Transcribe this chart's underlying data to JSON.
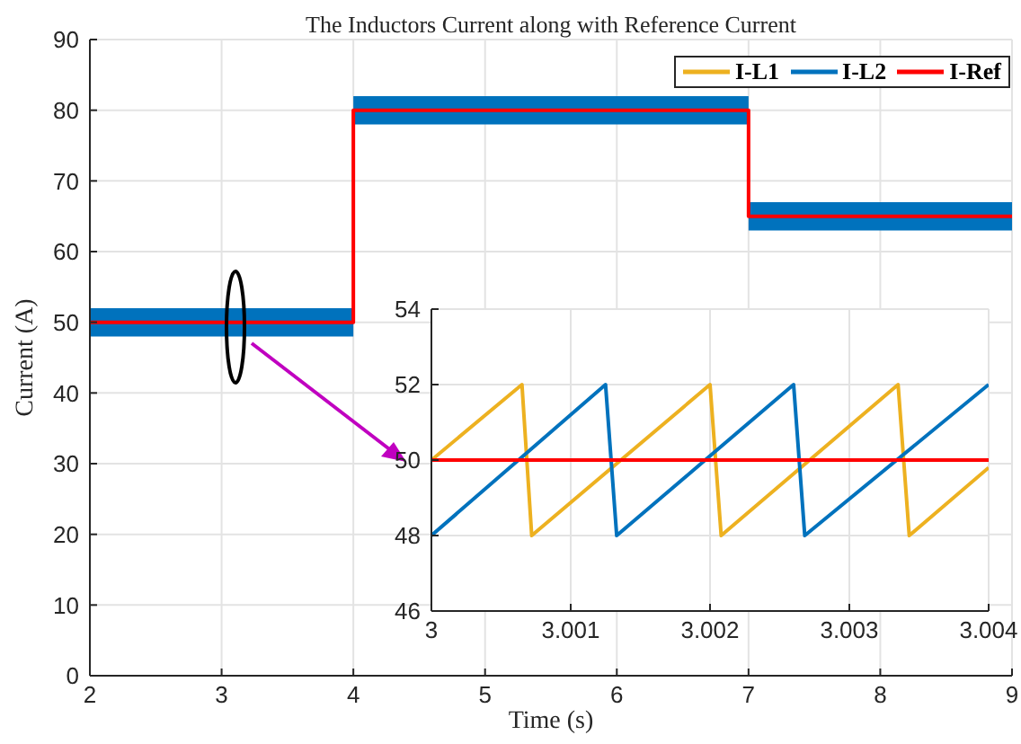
{
  "chart_data": [
    {
      "type": "line",
      "title": "The Inductors Current along with Reference Current",
      "xlabel": "Time (s)",
      "ylabel": "Current (A)",
      "xlim": [
        2,
        9
      ],
      "xticks": [
        2,
        3,
        4,
        5,
        6,
        7,
        8,
        9
      ],
      "ylim": [
        0,
        90
      ],
      "yticks": [
        0,
        10,
        20,
        30,
        40,
        50,
        60,
        70,
        80,
        90
      ],
      "grid": true,
      "legend": "top right",
      "series": [
        {
          "name": "I-L1",
          "color": "#edb120"
        },
        {
          "name": "I-L2",
          "color": "#0072bd",
          "x": [
            2,
            4,
            4,
            7,
            7,
            9
          ],
          "values": [
            null,
            null,
            null,
            null,
            null,
            null
          ],
          "lower": [
            48,
            48,
            78,
            78,
            63,
            63
          ],
          "upper": [
            52,
            52,
            82,
            82,
            67,
            67
          ]
        },
        {
          "name": "I-Ref",
          "color": "#ff0000",
          "x": [
            2,
            4,
            4,
            7,
            7,
            9
          ],
          "values": [
            50,
            50,
            80,
            80,
            65,
            65
          ]
        }
      ]
    },
    {
      "type": "line",
      "xlim": [
        3,
        3.004
      ],
      "xticks": [
        3,
        3.001,
        3.002,
        3.003,
        3.004
      ],
      "ylim": [
        46,
        54
      ],
      "yticks": [
        46,
        48,
        50,
        52,
        54
      ],
      "grid": true,
      "series": [
        {
          "color": "#edb120",
          "x": [
            3,
            3.00065,
            3.00072,
            3.002,
            3.00208,
            3.00335,
            3.00343,
            3.004
          ],
          "values": [
            50,
            52,
            48,
            52,
            48,
            52,
            48,
            49.8
          ]
        },
        {
          "color": "#0072bd",
          "x": [
            3,
            3.00125,
            3.00133,
            3.0026,
            3.00268,
            3.004
          ],
          "values": [
            48,
            52,
            48,
            52,
            48,
            52
          ]
        },
        {
          "color": "#ff0000",
          "x": [
            3,
            3.004
          ],
          "values": [
            50,
            50
          ]
        }
      ]
    }
  ]
}
